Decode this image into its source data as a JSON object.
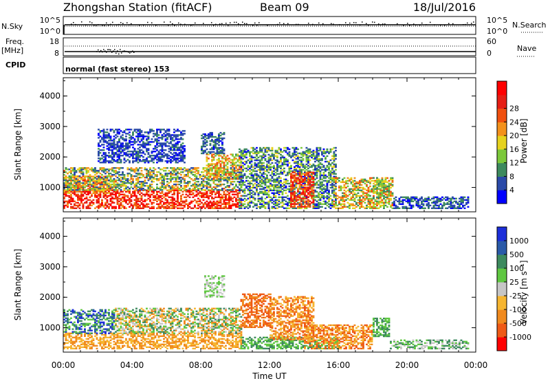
{
  "header": {
    "station": "Zhongshan Station (fitACF)",
    "beam": "Beam 09",
    "date": "18/Jul/2016"
  },
  "top_panels": {
    "nsky_label": "N.Sky",
    "nsky_ticks": [
      "10^5",
      "10^0"
    ],
    "nsearch_label": "N.Search",
    "nsearch_ticks": [
      "10^5",
      "10^0"
    ],
    "freq_label": "Freq.",
    "freq_unit": "[MHz]",
    "freq_ticks": [
      "18",
      "8"
    ],
    "nave_label": "Nave",
    "nave_ticks": [
      "60",
      "0"
    ],
    "cpid_label": "CPID",
    "cpid_text": "normal (fast stereo) 153"
  },
  "colors": {
    "power": [
      "#0000ff",
      "#2a4aa8",
      "#3d8a5e",
      "#7cc83a",
      "#e6d21e",
      "#f3911c",
      "#f0500f",
      "#e61e14",
      "#ff0000"
    ],
    "velocity": [
      "#ff0000",
      "#ef5a16",
      "#f08a1e",
      "#f6b530",
      "#c6c6c6",
      "#5fc741",
      "#3d8a5e",
      "#2a5aa8",
      "#1c2ed9"
    ]
  },
  "chart_data": [
    {
      "type": "heatmap",
      "name": "power",
      "ylabel": "Slant Range [km]",
      "yticks": [
        "1000",
        "2000",
        "3000",
        "4000"
      ],
      "ylim": [
        200,
        4600
      ],
      "xlim": [
        0,
        24
      ],
      "colorbar_label": "Power [dB]",
      "colorbar_ticks": [
        "4",
        "8",
        "12",
        "16",
        "20",
        "24",
        "28"
      ],
      "colorbar_range": [
        0,
        32
      ],
      "regions": [
        {
          "t0": 0.0,
          "t1": 10.3,
          "r0": 300,
          "r1": 900,
          "v0": 20,
          "v1": 32
        },
        {
          "t0": 0.0,
          "t1": 2.8,
          "r0": 800,
          "r1": 1350,
          "v0": 14,
          "v1": 28
        },
        {
          "t0": 0.0,
          "t1": 10.3,
          "r0": 900,
          "r1": 1650,
          "v0": 4,
          "v1": 22
        },
        {
          "t0": 8.3,
          "t1": 10.3,
          "r0": 1300,
          "r1": 2100,
          "v0": 10,
          "v1": 24
        },
        {
          "t0": 8.0,
          "t1": 9.3,
          "r0": 2100,
          "r1": 2800,
          "v0": 3,
          "v1": 10
        },
        {
          "t0": 10.2,
          "t1": 15.8,
          "r0": 300,
          "r1": 2300,
          "v0": 2,
          "v1": 16
        },
        {
          "t0": 13.2,
          "t1": 14.5,
          "r0": 350,
          "r1": 1500,
          "v0": 20,
          "v1": 30
        },
        {
          "t0": 15.7,
          "t1": 19.2,
          "r0": 300,
          "r1": 1300,
          "v0": 8,
          "v1": 24
        },
        {
          "t0": 18.0,
          "t1": 18.8,
          "r0": 800,
          "r1": 1300,
          "v0": 8,
          "v1": 16
        },
        {
          "t0": 19.2,
          "t1": 23.6,
          "r0": 300,
          "r1": 700,
          "v0": 2,
          "v1": 10
        },
        {
          "t0": 2.0,
          "t1": 7.0,
          "r0": 1800,
          "r1": 2900,
          "v0": 2,
          "v1": 8
        }
      ]
    },
    {
      "type": "heatmap",
      "name": "velocity",
      "ylabel": "Slant Range [km]",
      "yticks": [
        "1000",
        "2000",
        "3000",
        "4000"
      ],
      "ylim": [
        200,
        4600
      ],
      "xlim": [
        0,
        24
      ],
      "xlabel": "Time UT",
      "xticks": [
        "00:00",
        "04:00",
        "08:00",
        "12:00",
        "16:00",
        "20:00",
        "00:00"
      ],
      "colorbar_label": "Velocity [m s⁻¹]",
      "colorbar_ticks": [
        "-1000",
        "-500",
        "-100",
        "-25",
        "25",
        "100",
        "500",
        "1000"
      ],
      "regions": [
        {
          "t0": 0.0,
          "t1": 10.3,
          "r0": 300,
          "r1": 800,
          "v0": 2,
          "v1": 3
        },
        {
          "t0": 0.0,
          "t1": 3.0,
          "r0": 800,
          "r1": 1600,
          "v0": 5,
          "v1": 8
        },
        {
          "t0": 3.0,
          "t1": 10.3,
          "r0": 800,
          "r1": 1650,
          "v0": 2,
          "v1": 6
        },
        {
          "t0": 10.3,
          "t1": 12.0,
          "r0": 1000,
          "r1": 2100,
          "v0": 1,
          "v1": 2
        },
        {
          "t0": 10.3,
          "t1": 16.0,
          "r0": 300,
          "r1": 700,
          "v0": 5,
          "v1": 6
        },
        {
          "t0": 12.0,
          "t1": 14.5,
          "r0": 600,
          "r1": 2000,
          "v0": 1,
          "v1": 3
        },
        {
          "t0": 14.0,
          "t1": 18.0,
          "r0": 300,
          "r1": 1100,
          "v0": 1,
          "v1": 3
        },
        {
          "t0": 18.0,
          "t1": 19.0,
          "r0": 700,
          "r1": 1300,
          "v0": 5,
          "v1": 6
        },
        {
          "t0": 19.0,
          "t1": 23.6,
          "r0": 300,
          "r1": 600,
          "v0": 4,
          "v1": 6
        },
        {
          "t0": 8.2,
          "t1": 9.3,
          "r0": 2000,
          "r1": 2700,
          "v0": 4,
          "v1": 5
        }
      ]
    }
  ]
}
